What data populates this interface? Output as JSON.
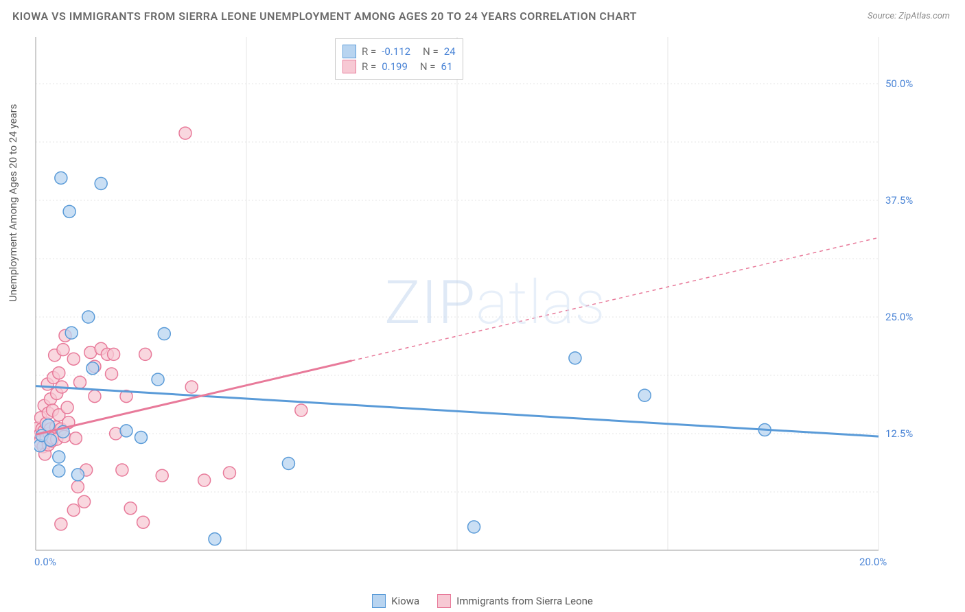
{
  "title": "KIOWA VS IMMIGRANTS FROM SIERRA LEONE UNEMPLOYMENT AMONG AGES 20 TO 24 YEARS CORRELATION CHART",
  "source": "Source: ZipAtlas.com",
  "ylabel": "Unemployment Among Ages 20 to 24 years",
  "watermark_a": "ZIP",
  "watermark_b": "atlas",
  "chart": {
    "type": "scatter",
    "background_color": "#ffffff",
    "grid_color": "#e4e4e4",
    "axis_color": "#bdbdbd",
    "xlim": [
      0,
      20
    ],
    "ylim": [
      0,
      55
    ],
    "x_ticks": [
      0,
      5,
      10,
      15,
      20
    ],
    "y_ticks": [
      12.5,
      25.0,
      37.5,
      50.0
    ],
    "x_tick_labels": [
      "0.0%",
      "",
      "",
      "",
      "20.0%"
    ],
    "y_tick_labels": [
      "12.5%",
      "25.0%",
      "37.5%",
      "50.0%"
    ],
    "label_fontsize": 15,
    "label_color": "#4a84d6",
    "marker_radius": 9,
    "marker_stroke_width": 1.5,
    "trend_solid_width": 3,
    "trend_dash_width": 1.5,
    "trend_dash_pattern": "5,5"
  },
  "series": [
    {
      "name": "Kiowa",
      "fill": "#b8d4f0",
      "stroke": "#5a9bd8",
      "R": "-0.112",
      "N": "24",
      "trend": {
        "x1": 0,
        "y1": 17.6,
        "x2": 20,
        "y2": 12.2,
        "solid_until_x": 20
      },
      "points": [
        [
          0.1,
          11.2
        ],
        [
          0.15,
          12.3
        ],
        [
          0.3,
          13.4
        ],
        [
          0.35,
          11.8
        ],
        [
          0.55,
          10.0
        ],
        [
          0.65,
          12.7
        ],
        [
          0.55,
          8.5
        ],
        [
          0.8,
          36.3
        ],
        [
          0.6,
          39.9
        ],
        [
          0.85,
          23.3
        ],
        [
          1.55,
          39.3
        ],
        [
          1.25,
          25.0
        ],
        [
          1.35,
          19.5
        ],
        [
          2.15,
          12.8
        ],
        [
          1.0,
          8.1
        ],
        [
          2.9,
          18.3
        ],
        [
          3.05,
          23.2
        ],
        [
          6.0,
          9.3
        ],
        [
          4.25,
          1.2
        ],
        [
          10.4,
          2.5
        ],
        [
          12.8,
          20.6
        ],
        [
          14.45,
          16.6
        ],
        [
          17.3,
          12.9
        ],
        [
          2.5,
          12.1
        ]
      ]
    },
    {
      "name": "Immigrants from Sierra Leone",
      "fill": "#f7c9d4",
      "stroke": "#e87a9a",
      "R": "0.199",
      "N": "61",
      "trend": {
        "x1": 0,
        "y1": 12.4,
        "x2": 20,
        "y2": 33.5,
        "solid_until_x": 7.5
      },
      "points": [
        [
          0.05,
          13.1
        ],
        [
          0.1,
          12.4
        ],
        [
          0.1,
          11.6
        ],
        [
          0.12,
          14.2
        ],
        [
          0.15,
          13.0
        ],
        [
          0.18,
          11.1
        ],
        [
          0.2,
          12.8
        ],
        [
          0.2,
          15.5
        ],
        [
          0.22,
          10.3
        ],
        [
          0.25,
          12.0
        ],
        [
          0.25,
          13.6
        ],
        [
          0.28,
          17.8
        ],
        [
          0.3,
          11.3
        ],
        [
          0.3,
          14.7
        ],
        [
          0.32,
          12.5
        ],
        [
          0.35,
          13.0
        ],
        [
          0.35,
          16.2
        ],
        [
          0.38,
          11.7
        ],
        [
          0.4,
          15.0
        ],
        [
          0.4,
          12.0
        ],
        [
          0.42,
          18.5
        ],
        [
          0.45,
          20.9
        ],
        [
          0.48,
          13.2
        ],
        [
          0.5,
          11.9
        ],
        [
          0.5,
          16.8
        ],
        [
          0.55,
          14.5
        ],
        [
          0.55,
          19.0
        ],
        [
          0.6,
          13.0
        ],
        [
          0.62,
          17.5
        ],
        [
          0.65,
          21.5
        ],
        [
          0.68,
          12.2
        ],
        [
          0.7,
          23.0
        ],
        [
          0.75,
          15.3
        ],
        [
          0.78,
          13.7
        ],
        [
          0.9,
          20.5
        ],
        [
          0.9,
          4.3
        ],
        [
          0.95,
          12.0
        ],
        [
          1.0,
          6.8
        ],
        [
          1.05,
          18.0
        ],
        [
          1.2,
          8.6
        ],
        [
          1.3,
          21.2
        ],
        [
          1.4,
          16.5
        ],
        [
          1.4,
          19.7
        ],
        [
          1.55,
          21.6
        ],
        [
          1.7,
          21.0
        ],
        [
          1.8,
          18.9
        ],
        [
          1.85,
          21.0
        ],
        [
          1.9,
          12.5
        ],
        [
          2.05,
          8.6
        ],
        [
          2.15,
          16.5
        ],
        [
          2.25,
          4.5
        ],
        [
          2.55,
          3.0
        ],
        [
          2.6,
          21.0
        ],
        [
          3.0,
          8.0
        ],
        [
          3.55,
          44.7
        ],
        [
          3.7,
          17.5
        ],
        [
          4.0,
          7.5
        ],
        [
          4.6,
          8.3
        ],
        [
          6.3,
          15.0
        ],
        [
          1.15,
          5.2
        ],
        [
          0.6,
          2.8
        ]
      ]
    }
  ],
  "stats_box": {
    "R_label": "R =",
    "N_label": "N ="
  },
  "legend": {
    "kiowa": "Kiowa",
    "sierra": "Immigrants from Sierra Leone"
  }
}
